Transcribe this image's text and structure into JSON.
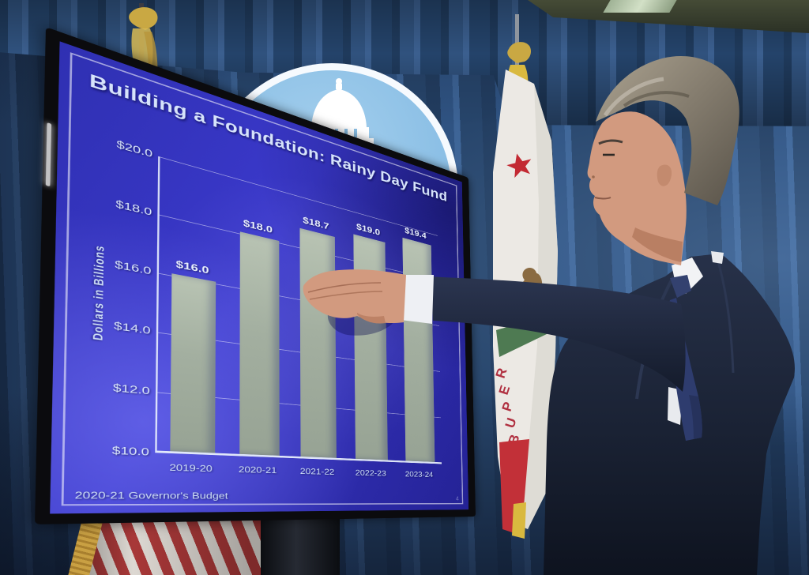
{
  "slide": {
    "title": "Building a Foundation: Rainy Day Fund",
    "footer": "2020-21 Governor's Budget",
    "page_number": "4"
  },
  "chart_data": {
    "type": "bar",
    "title": "Building a Foundation: Rainy Day Fund",
    "categories": [
      "2019-20",
      "2020-21",
      "2021-22",
      "2022-23",
      "2023-24"
    ],
    "values": [
      16.0,
      18.0,
      18.7,
      19.0,
      19.4
    ],
    "bar_labels": [
      "$16.0",
      "$18.0",
      "$18.7",
      "$19.0",
      "$19.4"
    ],
    "xlabel": "",
    "ylabel": "Dollars in Billions",
    "ylim": [
      10,
      20
    ],
    "yticks": [
      20,
      18,
      16,
      14,
      12,
      10
    ],
    "ytick_labels": [
      "$20.0",
      "$18.0",
      "$16.0",
      "$14.0",
      "$12.0",
      "$10.0"
    ],
    "grid": true,
    "legend": false,
    "bar_color": "#a3afa0",
    "background_color": "#3b39cc",
    "text_color": "#d6e3fb"
  },
  "california_flag": {
    "visible_text": "REPUB"
  },
  "colors": {
    "curtain_blue": "#2f5382",
    "seal_blue": "#88bde4",
    "suit_navy": "#1b2334",
    "tie_navy": "#2e3c6e",
    "flag_red": "#c23038",
    "flag_gold": "#d9b93f"
  }
}
